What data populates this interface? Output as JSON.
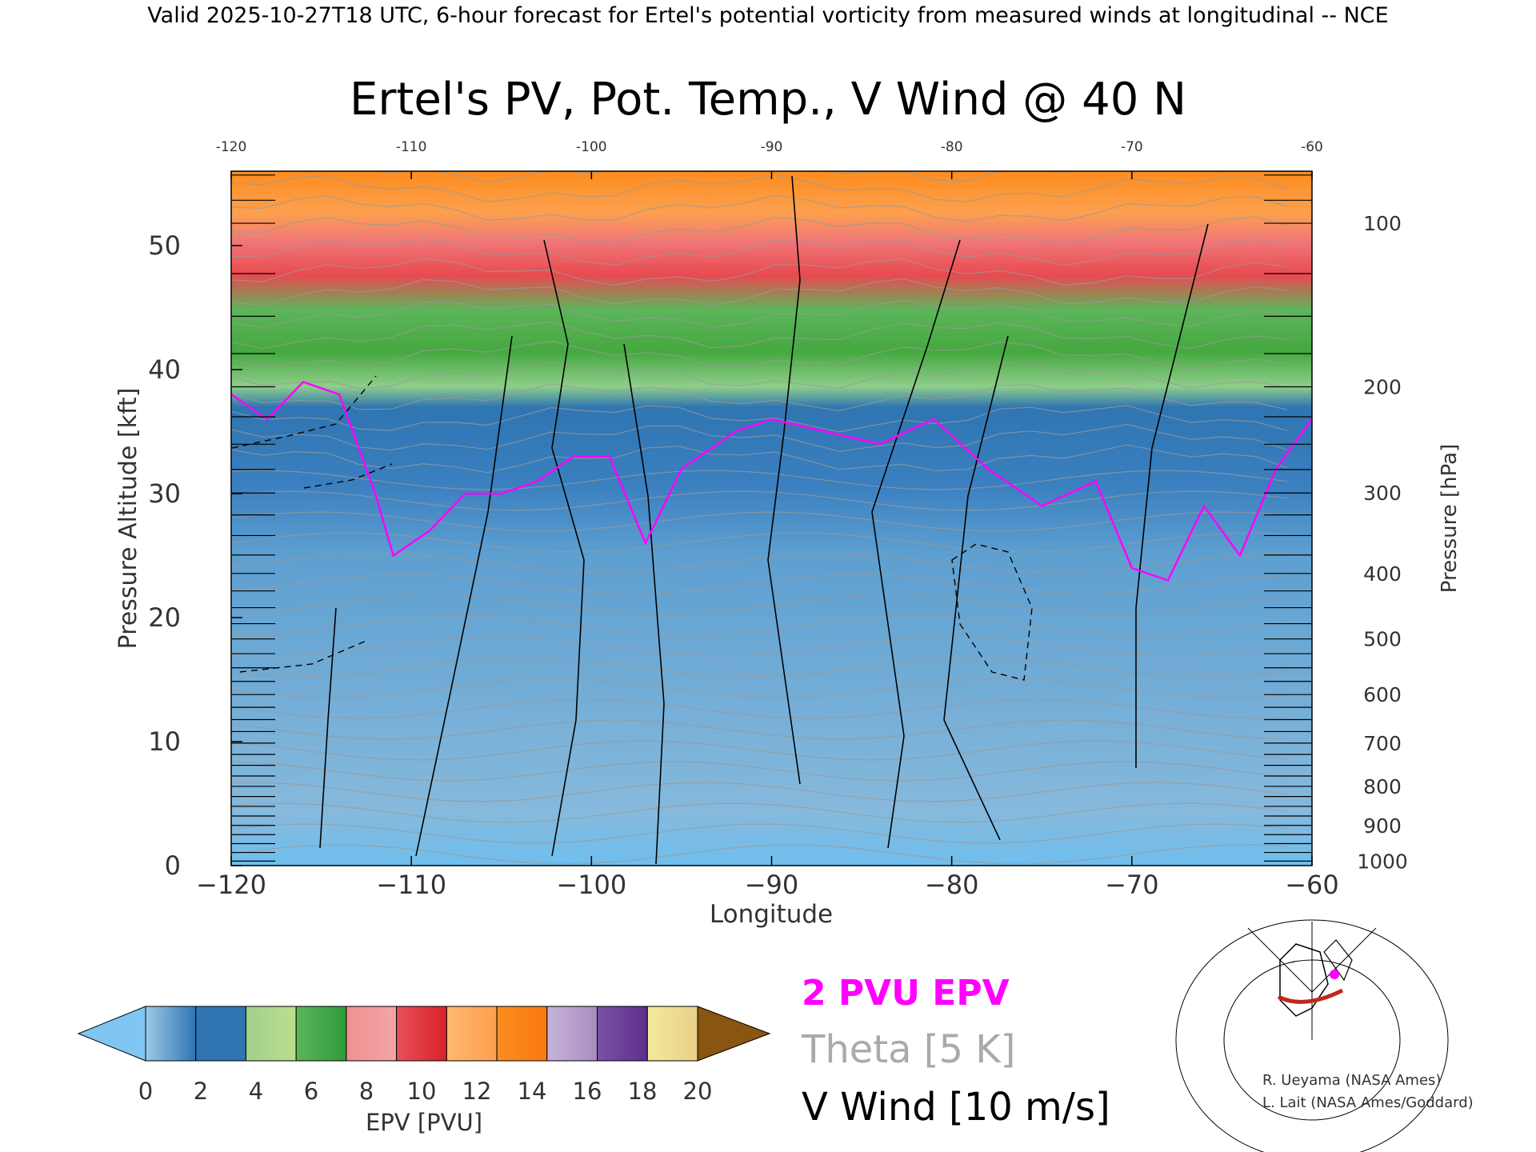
{
  "header": {
    "valid_line": "Valid 2025-10-27T18 UTC, 6-hour forecast for Ertel's potential vorticity from measured winds at longitudinal -- NCE"
  },
  "chart_data": {
    "type": "heatmap",
    "title": "Ertel's PV, Pot. Temp., V Wind @ 40 N",
    "xlabel": "Longitude",
    "ylabel": "Pressure Altitude [kft]",
    "y2label": "Pressure [hPa]",
    "xlim": [
      -120,
      -60
    ],
    "ylim": [
      0,
      56
    ],
    "x_ticks": [
      -120,
      -110,
      -100,
      -90,
      -80,
      -70,
      -60
    ],
    "x_tick_labels": [
      "−120",
      "−110",
      "−100",
      "−90",
      "−80",
      "−70",
      "−60"
    ],
    "top_tick_labels": [
      "-120",
      "-110",
      "-100",
      "-90",
      "-80",
      "-70",
      "-60"
    ],
    "y_ticks": [
      0,
      10,
      20,
      30,
      40,
      50
    ],
    "y_tick_labels": [
      "0",
      "10",
      "20",
      "30",
      "40",
      "50"
    ],
    "pressure_ticks": [
      {
        "p": 100,
        "label": "100"
      },
      {
        "p": 200,
        "label": "200"
      },
      {
        "p": 300,
        "label": "300"
      },
      {
        "p": 400,
        "label": "400"
      },
      {
        "p": 500,
        "label": "500"
      },
      {
        "p": 600,
        "label": "600"
      },
      {
        "p": 700,
        "label": "700"
      },
      {
        "p": 800,
        "label": "800"
      },
      {
        "p": 900,
        "label": "900"
      },
      {
        "p": 1000,
        "label": "1000"
      }
    ],
    "tropopause_kft": [
      {
        "lon": -120,
        "kft": 38
      },
      {
        "lon": -118,
        "kft": 36
      },
      {
        "lon": -116,
        "kft": 39
      },
      {
        "lon": -114,
        "kft": 38
      },
      {
        "lon": -112,
        "kft": 30
      },
      {
        "lon": -111,
        "kft": 25
      },
      {
        "lon": -109,
        "kft": 27
      },
      {
        "lon": -107,
        "kft": 30
      },
      {
        "lon": -105,
        "kft": 30
      },
      {
        "lon": -103,
        "kft": 31
      },
      {
        "lon": -101,
        "kft": 33
      },
      {
        "lon": -99,
        "kft": 33
      },
      {
        "lon": -97,
        "kft": 26
      },
      {
        "lon": -95,
        "kft": 32
      },
      {
        "lon": -92,
        "kft": 35
      },
      {
        "lon": -90,
        "kft": 36
      },
      {
        "lon": -87,
        "kft": 35
      },
      {
        "lon": -84,
        "kft": 34
      },
      {
        "lon": -81,
        "kft": 36
      },
      {
        "lon": -78,
        "kft": 32
      },
      {
        "lon": -75,
        "kft": 29
      },
      {
        "lon": -72,
        "kft": 31
      },
      {
        "lon": -70,
        "kft": 24
      },
      {
        "lon": -68,
        "kft": 23
      },
      {
        "lon": -66,
        "kft": 29
      },
      {
        "lon": -64,
        "kft": 25
      },
      {
        "lon": -62,
        "kft": 32
      },
      {
        "lon": -60,
        "kft": 36
      }
    ],
    "colorbar": {
      "label": "EPV [PVU]",
      "tick_labels": [
        "0",
        "2",
        "4",
        "6",
        "8",
        "10",
        "12",
        "14",
        "16",
        "18",
        "20"
      ],
      "under_color": "#7fc6f2",
      "over_color": "#8a5510",
      "colors": [
        [
          "#9cc9e6",
          "#2f75b2"
        ],
        [
          "#2f75b2",
          "#2f75b2"
        ],
        [
          "#a0d08c",
          "#bbe08c"
        ],
        [
          "#5cb55a",
          "#2f9a3a"
        ],
        [
          "#f09090",
          "#f2a6a6"
        ],
        [
          "#e8505a",
          "#d8222a"
        ],
        [
          "#fdb870",
          "#fda04e"
        ],
        [
          "#fd8c1e",
          "#f97a10"
        ],
        [
          "#c8b4d8",
          "#a88cc4"
        ],
        [
          "#7a52a6",
          "#5e2e8c"
        ],
        [
          "#f2ea98",
          "#e8d08a"
        ]
      ]
    },
    "legend": [
      {
        "label": "2 PVU EPV",
        "color": "#ff00ff"
      },
      {
        "label": "Theta [5 K]",
        "color": "#aaaaaa"
      },
      {
        "label": "V Wind [10 m/s]",
        "color": "#000000"
      }
    ],
    "credits": [
      "R. Ueyama (NASA Ames)",
      "L. Lait (NASA Ames/Goddard)"
    ]
  }
}
